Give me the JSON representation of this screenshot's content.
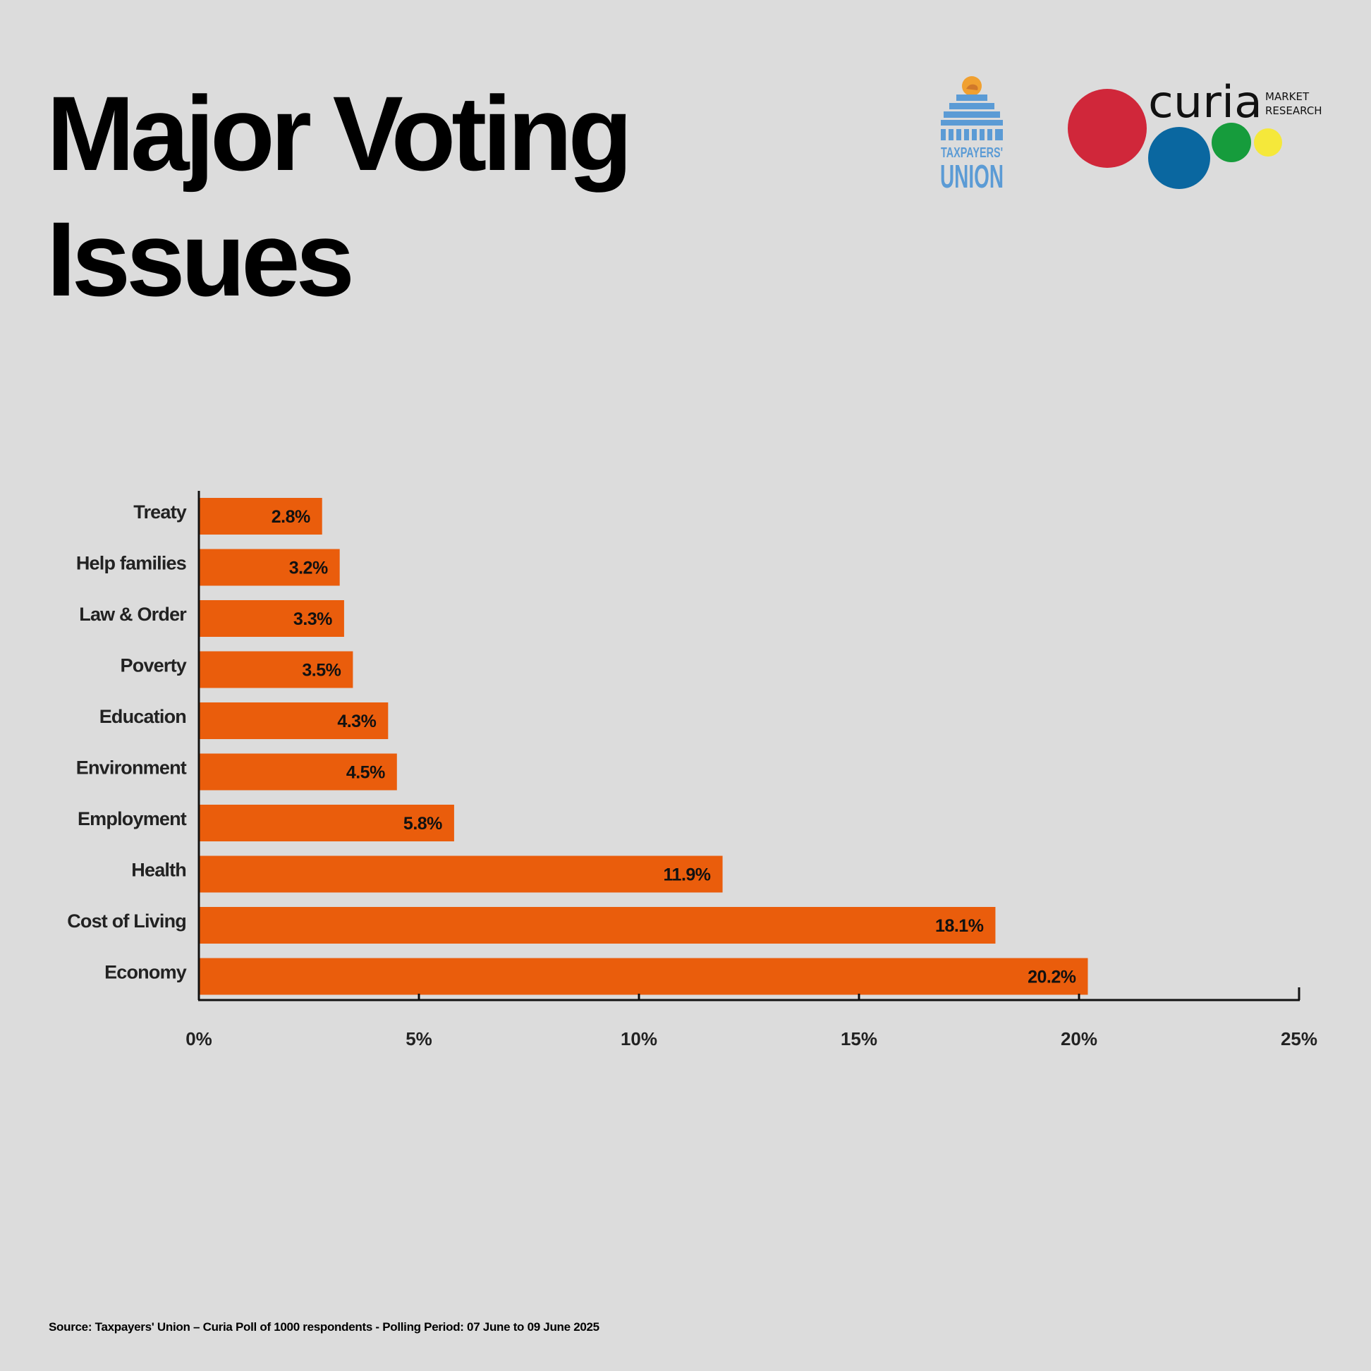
{
  "header": {
    "title_line1": "Major Voting",
    "title_line2": "Issues"
  },
  "logos": {
    "taxpayers_union": {
      "line1": "TAXPAYERS'",
      "line2": "UNION",
      "color": "#5b9bd5",
      "accent": "#f0a030"
    },
    "curia": {
      "name": "curia",
      "line1": "MARKET",
      "line2": "RESEARCH",
      "dot_colors": [
        "#d0273a",
        "#0a67a0",
        "#169c3c",
        "#f5e83a"
      ]
    }
  },
  "chart_data": {
    "type": "bar",
    "orientation": "horizontal",
    "categories": [
      "Treaty",
      "Help families",
      "Law & Order",
      "Poverty",
      "Education",
      "Environment",
      "Employment",
      "Health",
      "Cost of Living",
      "Economy"
    ],
    "values": [
      2.8,
      3.2,
      3.3,
      3.5,
      4.3,
      4.5,
      5.8,
      11.9,
      18.1,
      20.2
    ],
    "data_labels": [
      "2.8%",
      "3.2%",
      "3.3%",
      "3.5%",
      "4.3%",
      "4.5%",
      "5.8%",
      "11.9%",
      "18.1%",
      "20.2%"
    ],
    "xlim": [
      0,
      25
    ],
    "x_ticks": [
      0,
      5,
      10,
      15,
      20,
      25
    ],
    "x_tick_labels": [
      "0%",
      "5%",
      "10%",
      "15%",
      "20%",
      "25%"
    ],
    "grid": false,
    "bar_color": "#ea5d0c"
  },
  "footer": {
    "source": "Source: Taxpayers' Union – Curia Poll of 1000 respondents -  Polling Period: 07 June to 09 June 2025"
  }
}
